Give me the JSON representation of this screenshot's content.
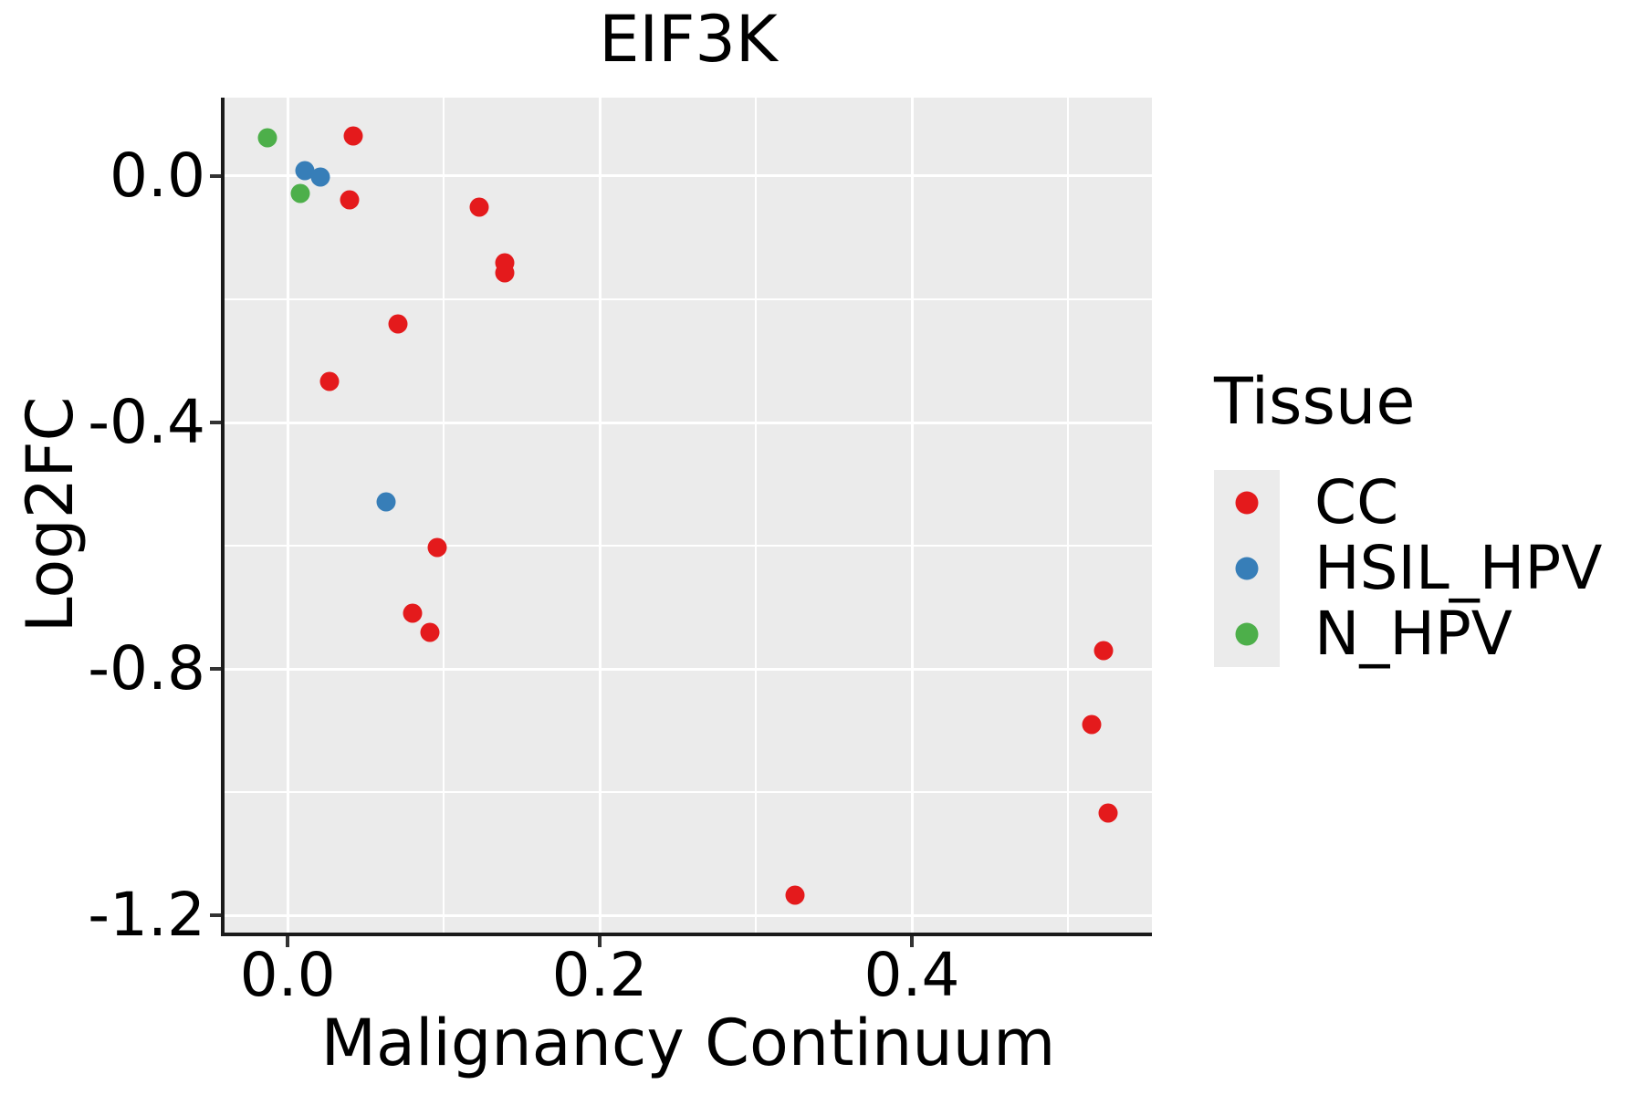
{
  "title": "EIF3K",
  "axes": {
    "x": {
      "label": "Malignancy Continuum"
    },
    "y": {
      "label": "Log2FC"
    }
  },
  "legend": {
    "title": "Tissue",
    "entries": [
      {
        "label": "CC",
        "color": "#e41a1c"
      },
      {
        "label": "HSIL_HPV",
        "color": "#377eb8"
      },
      {
        "label": "N_HPV",
        "color": "#4daf4a"
      }
    ]
  },
  "colors": {
    "panel_background": "#ebebeb",
    "gridline": "#ffffff",
    "spine": "#1a1a1a",
    "text": "#000000"
  },
  "chart_data": {
    "type": "scatter",
    "title": "EIF3K",
    "xlabel": "Malignancy Continuum",
    "ylabel": "Log2FC",
    "xlim": [
      -0.0404,
      0.5538
    ],
    "ylim": [
      -1.2281,
      0.1274
    ],
    "x_major_ticks": [
      0.0,
      0.2,
      0.4
    ],
    "y_major_ticks": [
      0.0,
      -0.4,
      -0.8,
      -1.2
    ],
    "x_minor_gridlines": [
      0.1,
      0.3,
      0.5
    ],
    "y_minor_gridlines": [
      -0.2,
      -0.6,
      -1.0
    ],
    "grid": true,
    "legend_position": "right",
    "legend_title": "Tissue",
    "series": [
      {
        "name": "CC",
        "color": "#e41a1c",
        "points": [
          [
            0.042,
            0.065
          ],
          [
            0.04,
            -0.039
          ],
          [
            0.123,
            -0.05
          ],
          [
            0.139,
            -0.141
          ],
          [
            0.139,
            -0.157
          ],
          [
            0.071,
            -0.24
          ],
          [
            0.027,
            -0.333
          ],
          [
            0.096,
            -0.603
          ],
          [
            0.08,
            -0.71
          ],
          [
            0.091,
            -0.741
          ],
          [
            0.523,
            -0.77
          ],
          [
            0.515,
            -0.89
          ],
          [
            0.526,
            -1.034
          ],
          [
            0.325,
            -1.167
          ]
        ]
      },
      {
        "name": "HSIL_HPV",
        "color": "#377eb8",
        "points": [
          [
            0.011,
            0.009
          ],
          [
            0.021,
            -0.001
          ],
          [
            0.063,
            -0.529
          ]
        ]
      },
      {
        "name": "N_HPV",
        "color": "#4daf4a",
        "points": [
          [
            -0.013,
            0.062
          ],
          [
            0.008,
            -0.028
          ]
        ]
      }
    ]
  }
}
